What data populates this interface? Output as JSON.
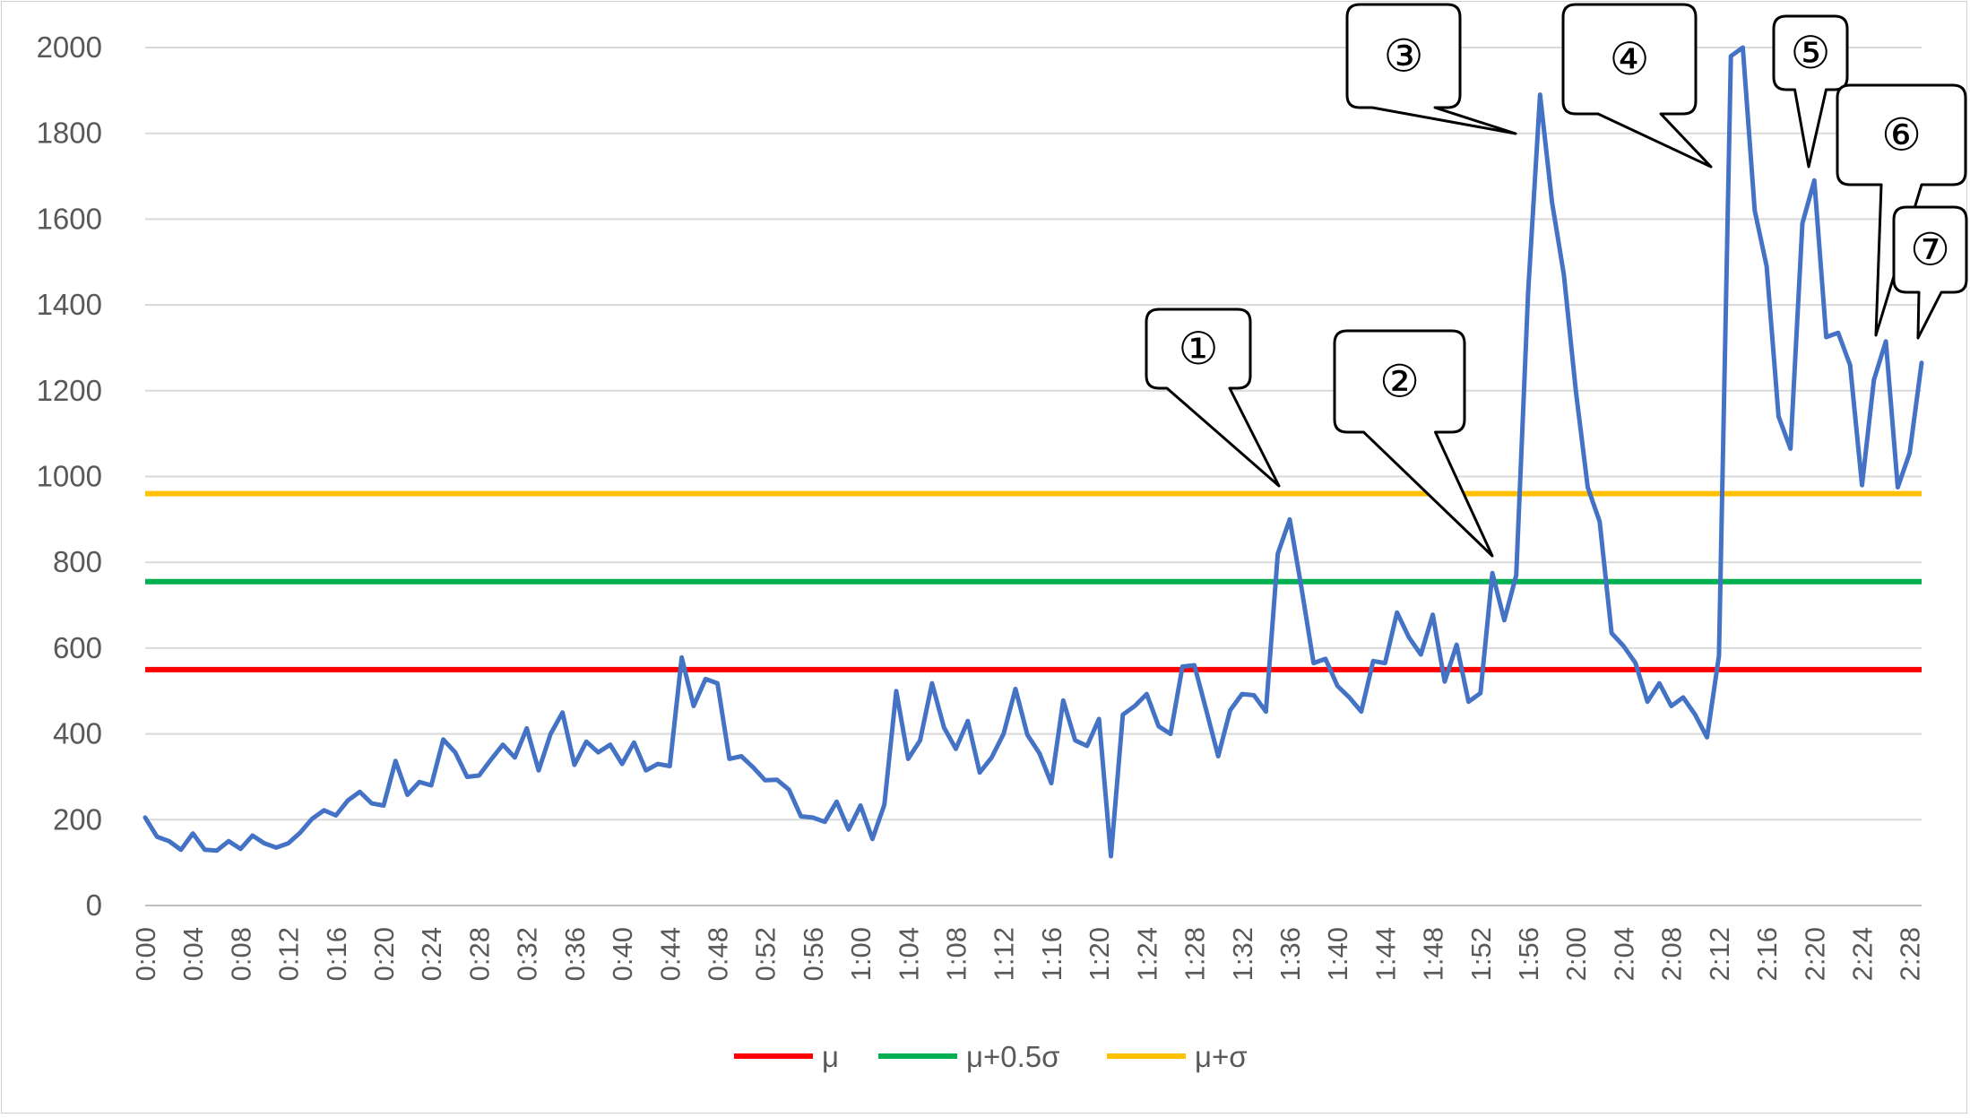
{
  "chart_data": {
    "type": "line",
    "title": "",
    "xlabel": "",
    "ylabel": "",
    "ylim": [
      0,
      2000
    ],
    "yticks": [
      0,
      200,
      400,
      600,
      800,
      1000,
      1200,
      1400,
      1600,
      1800,
      2000
    ],
    "grid": "horizontal",
    "legend_position": "bottom",
    "x_tick_labels": [
      "0:00",
      "0:04",
      "0:08",
      "0:12",
      "0:16",
      "0:20",
      "0:24",
      "0:28",
      "0:32",
      "0:36",
      "0:40",
      "0:44",
      "0:48",
      "0:52",
      "0:56",
      "1:00",
      "1:04",
      "1:08",
      "1:12",
      "1:16",
      "1:20",
      "1:24",
      "1:28",
      "1:32",
      "1:36",
      "1:40",
      "1:44",
      "1:48",
      "1:52",
      "1:56",
      "2:00",
      "2:04",
      "2:08",
      "2:12",
      "2:16",
      "2:20",
      "2:24",
      "2:28"
    ],
    "x_minutes_first": 0,
    "x_minutes_last": 149,
    "series": [
      {
        "values": [
          205,
          160,
          150,
          130,
          168,
          130,
          128,
          150,
          132,
          163,
          145,
          135,
          145,
          170,
          202,
          222,
          210,
          245,
          265,
          238,
          233,
          337,
          258,
          288,
          280,
          387,
          357,
          300,
          303,
          340,
          375,
          345,
          413,
          315,
          400,
          450,
          328,
          382,
          357,
          375,
          330,
          380,
          315,
          330,
          325,
          578,
          465,
          528,
          518,
          342,
          348,
          322,
          292,
          293,
          270,
          208,
          205,
          195,
          242,
          177,
          233,
          155,
          235,
          500,
          342,
          385,
          518,
          415,
          365,
          430,
          310,
          345,
          400,
          505,
          398,
          355,
          285,
          478,
          385,
          372,
          435,
          115,
          445,
          465,
          493,
          418,
          400,
          557,
          560,
          455,
          348,
          455,
          493,
          490,
          452,
          820,
          900,
          738,
          565,
          575,
          512,
          485,
          452,
          570,
          565,
          683,
          625,
          585,
          678,
          522,
          608,
          475,
          495,
          775,
          665,
          770,
          1430,
          1890,
          1640,
          1470,
          1200,
          975,
          895,
          635,
          605,
          565,
          475,
          518,
          465,
          485,
          445,
          392,
          582,
          1980,
          2000,
          1620,
          1490,
          1140,
          1065,
          1590,
          1690,
          1325,
          1335,
          1260,
          980,
          1225,
          1315,
          975,
          1055,
          1265
        ],
        "color": "#4472C4"
      }
    ],
    "reference_lines": [
      {
        "name": "μ",
        "value": 550,
        "color": "#FF0000"
      },
      {
        "name": "μ+0.5σ",
        "value": 755,
        "color": "#00B050"
      },
      {
        "name": "μ+σ",
        "value": 960,
        "color": "#FFC000"
      }
    ],
    "annotations": [
      {
        "label": "①",
        "point_minute": 96
      },
      {
        "label": "②",
        "point_minute": 114
      },
      {
        "label": "③",
        "point_minute": 117
      },
      {
        "label": "④",
        "point_minute": 133
      },
      {
        "label": "⑤",
        "point_minute": 141
      },
      {
        "label": "⑥",
        "point_minute": 146
      },
      {
        "label": "⑦",
        "point_minute": 149
      }
    ]
  }
}
